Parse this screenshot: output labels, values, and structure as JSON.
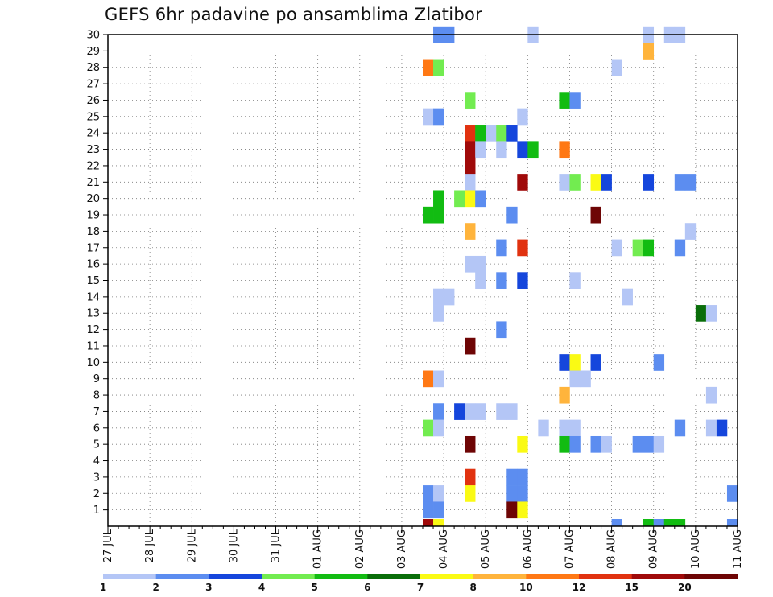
{
  "chart_data": {
    "type": "heatmap",
    "title": "GEFS 6hr padavine po ansamblima Zlatibor",
    "members": [
      "1",
      "2",
      "3",
      "4",
      "5",
      "6",
      "7",
      "8",
      "9",
      "10",
      "11",
      "12",
      "13",
      "14",
      "15",
      "16",
      "17",
      "18",
      "19",
      "20",
      "21",
      "22",
      "23",
      "24",
      "25",
      "26",
      "27",
      "28",
      "29",
      "30"
    ],
    "x_tick_labels": [
      "27 JUL",
      "28 JUL",
      "29 JUL",
      "30 JUL",
      "31 JUL",
      "01 AUG",
      "02 AUG",
      "03 AUG",
      "04 AUG",
      "05 AUG",
      "06 AUG",
      "07 AUG",
      "08 AUG",
      "09 AUG",
      "10 AUG",
      "11 AUG"
    ],
    "x_range_steps": [
      0,
      60
    ],
    "y_range": [
      0,
      30
    ],
    "grid": true,
    "colorbar": {
      "labels": [
        "1",
        "2",
        "3",
        "4",
        "5",
        "6",
        "7",
        "8",
        "10",
        "12",
        "15",
        "20"
      ],
      "colors": [
        "#b4c6f6",
        "#5c8df0",
        "#1546dc",
        "#72ec50",
        "#12bc12",
        "#0a6e0a",
        "#fafa14",
        "#ffb43c",
        "#ff7814",
        "#e13210",
        "#a00a0a",
        "#6e0505"
      ],
      "position": "bottom"
    },
    "cells": [
      {
        "step": 31,
        "member": 30,
        "cat": 2
      },
      {
        "step": 32,
        "member": 30,
        "cat": 2
      },
      {
        "step": 40,
        "member": 30,
        "cat": 1
      },
      {
        "step": 51,
        "member": 30,
        "cat": 1
      },
      {
        "step": 53,
        "member": 30,
        "cat": 1
      },
      {
        "step": 54,
        "member": 30,
        "cat": 1
      },
      {
        "step": 51,
        "member": 29,
        "cat": 8
      },
      {
        "step": 30,
        "member": 28,
        "cat": 9
      },
      {
        "step": 31,
        "member": 28,
        "cat": 4
      },
      {
        "step": 48,
        "member": 28,
        "cat": 1
      },
      {
        "step": 34,
        "member": 26,
        "cat": 4
      },
      {
        "step": 43,
        "member": 26,
        "cat": 5
      },
      {
        "step": 44,
        "member": 26,
        "cat": 2
      },
      {
        "step": 30,
        "member": 25,
        "cat": 1
      },
      {
        "step": 31,
        "member": 25,
        "cat": 2
      },
      {
        "step": 39,
        "member": 25,
        "cat": 1
      },
      {
        "step": 34,
        "member": 24,
        "cat": 10
      },
      {
        "step": 35,
        "member": 24,
        "cat": 5
      },
      {
        "step": 36,
        "member": 24,
        "cat": 1
      },
      {
        "step": 37,
        "member": 24,
        "cat": 4
      },
      {
        "step": 38,
        "member": 24,
        "cat": 3
      },
      {
        "step": 34,
        "member": 23,
        "cat": 11
      },
      {
        "step": 35,
        "member": 23,
        "cat": 1
      },
      {
        "step": 37,
        "member": 23,
        "cat": 1
      },
      {
        "step": 39,
        "member": 23,
        "cat": 3
      },
      {
        "step": 40,
        "member": 23,
        "cat": 5
      },
      {
        "step": 43,
        "member": 23,
        "cat": 9
      },
      {
        "step": 34,
        "member": 22,
        "cat": 11
      },
      {
        "step": 34,
        "member": 21,
        "cat": 1
      },
      {
        "step": 39,
        "member": 21,
        "cat": 11
      },
      {
        "step": 43,
        "member": 21,
        "cat": 1
      },
      {
        "step": 44,
        "member": 21,
        "cat": 4
      },
      {
        "step": 46,
        "member": 21,
        "cat": 7
      },
      {
        "step": 47,
        "member": 21,
        "cat": 3
      },
      {
        "step": 51,
        "member": 21,
        "cat": 3
      },
      {
        "step": 54,
        "member": 21,
        "cat": 2
      },
      {
        "step": 55,
        "member": 21,
        "cat": 2
      },
      {
        "step": 31,
        "member": 20,
        "cat": 5
      },
      {
        "step": 33,
        "member": 20,
        "cat": 4
      },
      {
        "step": 34,
        "member": 20,
        "cat": 7
      },
      {
        "step": 35,
        "member": 20,
        "cat": 2
      },
      {
        "step": 30,
        "member": 19,
        "cat": 5
      },
      {
        "step": 31,
        "member": 19,
        "cat": 5
      },
      {
        "step": 38,
        "member": 19,
        "cat": 2
      },
      {
        "step": 46,
        "member": 19,
        "cat": 12
      },
      {
        "step": 34,
        "member": 18,
        "cat": 8
      },
      {
        "step": 55,
        "member": 18,
        "cat": 1
      },
      {
        "step": 37,
        "member": 17,
        "cat": 2
      },
      {
        "step": 39,
        "member": 17,
        "cat": 10
      },
      {
        "step": 48,
        "member": 17,
        "cat": 1
      },
      {
        "step": 50,
        "member": 17,
        "cat": 4
      },
      {
        "step": 51,
        "member": 17,
        "cat": 5
      },
      {
        "step": 54,
        "member": 17,
        "cat": 2
      },
      {
        "step": 34,
        "member": 16,
        "cat": 1
      },
      {
        "step": 35,
        "member": 16,
        "cat": 1
      },
      {
        "step": 35,
        "member": 15,
        "cat": 1
      },
      {
        "step": 37,
        "member": 15,
        "cat": 2
      },
      {
        "step": 39,
        "member": 15,
        "cat": 3
      },
      {
        "step": 44,
        "member": 15,
        "cat": 1
      },
      {
        "step": 31,
        "member": 14,
        "cat": 1
      },
      {
        "step": 32,
        "member": 14,
        "cat": 1
      },
      {
        "step": 49,
        "member": 14,
        "cat": 1
      },
      {
        "step": 31,
        "member": 13,
        "cat": 1
      },
      {
        "step": 56,
        "member": 13,
        "cat": 6
      },
      {
        "step": 57,
        "member": 13,
        "cat": 1
      },
      {
        "step": 37,
        "member": 12,
        "cat": 2
      },
      {
        "step": 34,
        "member": 11,
        "cat": 12
      },
      {
        "step": 43,
        "member": 10,
        "cat": 3
      },
      {
        "step": 44,
        "member": 10,
        "cat": 7
      },
      {
        "step": 46,
        "member": 10,
        "cat": 3
      },
      {
        "step": 52,
        "member": 10,
        "cat": 2
      },
      {
        "step": 30,
        "member": 9,
        "cat": 9
      },
      {
        "step": 31,
        "member": 9,
        "cat": 1
      },
      {
        "step": 44,
        "member": 9,
        "cat": 1
      },
      {
        "step": 45,
        "member": 9,
        "cat": 1
      },
      {
        "step": 43,
        "member": 8,
        "cat": 8
      },
      {
        "step": 57,
        "member": 8,
        "cat": 1
      },
      {
        "step": 31,
        "member": 7,
        "cat": 2
      },
      {
        "step": 33,
        "member": 7,
        "cat": 3
      },
      {
        "step": 34,
        "member": 7,
        "cat": 1
      },
      {
        "step": 35,
        "member": 7,
        "cat": 1
      },
      {
        "step": 37,
        "member": 7,
        "cat": 1
      },
      {
        "step": 38,
        "member": 7,
        "cat": 1
      },
      {
        "step": 30,
        "member": 6,
        "cat": 4
      },
      {
        "step": 31,
        "member": 6,
        "cat": 1
      },
      {
        "step": 41,
        "member": 6,
        "cat": 1
      },
      {
        "step": 43,
        "member": 6,
        "cat": 1
      },
      {
        "step": 44,
        "member": 6,
        "cat": 1
      },
      {
        "step": 54,
        "member": 6,
        "cat": 2
      },
      {
        "step": 57,
        "member": 6,
        "cat": 1
      },
      {
        "step": 58,
        "member": 6,
        "cat": 3
      },
      {
        "step": 34,
        "member": 5,
        "cat": 12
      },
      {
        "step": 39,
        "member": 5,
        "cat": 7
      },
      {
        "step": 43,
        "member": 5,
        "cat": 5
      },
      {
        "step": 44,
        "member": 5,
        "cat": 2
      },
      {
        "step": 46,
        "member": 5,
        "cat": 2
      },
      {
        "step": 47,
        "member": 5,
        "cat": 1
      },
      {
        "step": 50,
        "member": 5,
        "cat": 2
      },
      {
        "step": 51,
        "member": 5,
        "cat": 2
      },
      {
        "step": 52,
        "member": 5,
        "cat": 1
      },
      {
        "step": 34,
        "member": 3,
        "cat": 10
      },
      {
        "step": 38,
        "member": 3,
        "cat": 2
      },
      {
        "step": 39,
        "member": 3,
        "cat": 2
      },
      {
        "step": 30,
        "member": 2,
        "cat": 2
      },
      {
        "step": 31,
        "member": 2,
        "cat": 1
      },
      {
        "step": 34,
        "member": 2,
        "cat": 7
      },
      {
        "step": 38,
        "member": 2,
        "cat": 2
      },
      {
        "step": 39,
        "member": 2,
        "cat": 2
      },
      {
        "step": 59,
        "member": 2,
        "cat": 2
      },
      {
        "step": 30,
        "member": 1,
        "cat": 2
      },
      {
        "step": 31,
        "member": 1,
        "cat": 2
      },
      {
        "step": 38,
        "member": 1,
        "cat": 12
      },
      {
        "step": 39,
        "member": 1,
        "cat": 7
      },
      {
        "step": 30,
        "member": 0,
        "cat": 11
      },
      {
        "step": 31,
        "member": 0,
        "cat": 7
      },
      {
        "step": 48,
        "member": 0,
        "cat": 2
      },
      {
        "step": 51,
        "member": 0,
        "cat": 5
      },
      {
        "step": 52,
        "member": 0,
        "cat": 2
      },
      {
        "step": 53,
        "member": 0,
        "cat": 5
      },
      {
        "step": 54,
        "member": 0,
        "cat": 5
      },
      {
        "step": 59,
        "member": 0,
        "cat": 2
      }
    ]
  }
}
